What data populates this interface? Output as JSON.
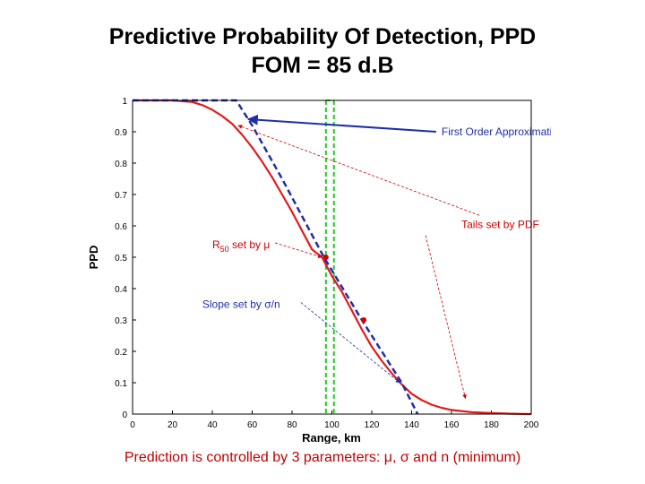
{
  "slide": {
    "title_line1": "Predictive Probability Of Detection, PPD",
    "title_line2": "FOM = 85 d.B",
    "caption": "Prediction is controlled by 3 parameters: μ, σ and n (minimum)"
  },
  "chart_data": {
    "type": "line",
    "xlabel": "Range, km",
    "ylabel": "PPD",
    "xlim": [
      0,
      200
    ],
    "ylim": [
      0,
      1
    ],
    "xticks": [
      0,
      20,
      40,
      60,
      80,
      100,
      120,
      140,
      160,
      180,
      200
    ],
    "yticks": [
      0,
      0.1,
      0.2,
      0.3,
      0.4,
      0.5,
      0.6,
      0.7,
      0.8,
      0.9,
      1
    ],
    "grid": false,
    "series": [
      {
        "role": "ppd-curve",
        "style": "solid",
        "color": "#e31a1a",
        "x": [
          0,
          10,
          20,
          30,
          35,
          40,
          45,
          50,
          55,
          60,
          65,
          70,
          75,
          80,
          85,
          90,
          95,
          100,
          105,
          110,
          115,
          120,
          125,
          130,
          135,
          140,
          145,
          150,
          155,
          160,
          170,
          180,
          190,
          200
        ],
        "y": [
          1.0,
          1.0,
          1.0,
          0.995,
          0.985,
          0.97,
          0.95,
          0.925,
          0.89,
          0.85,
          0.805,
          0.755,
          0.7,
          0.645,
          0.585,
          0.525,
          0.5,
          0.44,
          0.39,
          0.33,
          0.27,
          0.215,
          0.17,
          0.13,
          0.095,
          0.065,
          0.045,
          0.03,
          0.02,
          0.013,
          0.006,
          0.003,
          0.001,
          0.0
        ]
      },
      {
        "role": "first-order-approximation",
        "style": "dashed",
        "color": "#1f2ea8",
        "x": [
          0,
          52,
          60,
          75,
          96,
          115,
          135,
          143
        ],
        "y": [
          1.0,
          1.0,
          0.92,
          0.75,
          0.5,
          0.3,
          0.1,
          0.0
        ]
      }
    ],
    "reference_lines": [
      {
        "orientation": "vertical",
        "x": 97,
        "color": "#22cc22",
        "style": "dashed"
      },
      {
        "orientation": "vertical",
        "x": 101,
        "color": "#22cc22",
        "style": "dashed"
      },
      {
        "orientation": "horizontal",
        "y": 1.0,
        "x_from": 97,
        "x_to": 101,
        "color": "#22cc22",
        "style": "dashed"
      }
    ],
    "markers": [
      {
        "x": 97,
        "y": 0.5,
        "color": "#cc0000"
      },
      {
        "x": 116,
        "y": 0.3,
        "color": "#cc0000"
      }
    ],
    "annotations": [
      {
        "text": "First Order Approximation",
        "color": "#1f2ea8",
        "x": 155,
        "y": 0.9,
        "arrow_to": [
          58,
          0.94
        ],
        "arrow_color": "#1f2ea8"
      },
      {
        "text": "Tails set by PDF",
        "color": "#cc0000",
        "x": 165,
        "y": 0.605,
        "arrow_to": [
          53,
          0.92
        ],
        "arrow_color": "#cc0000"
      },
      {
        "text": "Tails set by PDF",
        "show": false,
        "arrow_from": [
          147,
          0.57
        ],
        "arrow_to": [
          167,
          0.05
        ],
        "arrow_color": "#cc0000"
      },
      {
        "text": "R50 set by μ",
        "color": "#cc0000",
        "x": 40,
        "y": 0.54,
        "arrow_to": [
          95,
          0.5
        ],
        "arrow_color": "#cc0000"
      },
      {
        "text": "Slope set by σ/n",
        "color": "#1f2ea8",
        "x": 35,
        "y": 0.35,
        "arrow_to": [
          134,
          0.1
        ],
        "arrow_color": "#1f2ea8"
      }
    ]
  }
}
